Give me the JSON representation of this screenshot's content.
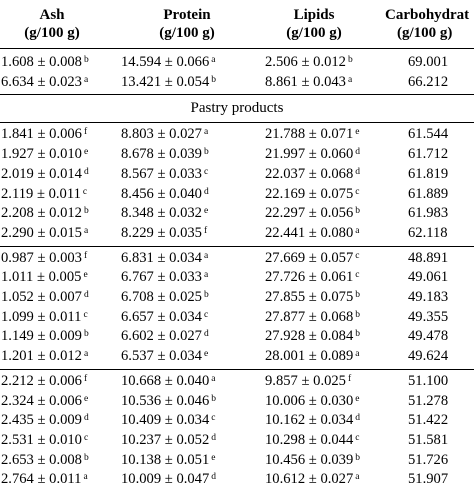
{
  "headers": {
    "ash": "Ash",
    "ash_unit": "(g/100 g)",
    "protein": "Protein",
    "protein_unit": "(g/100 g)",
    "lipids": "Lipids",
    "lipids_unit": "(g/100 g)",
    "carb": "Carbohydrat",
    "carb_unit": "(g/100 g)"
  },
  "group0": [
    {
      "ash": "1.608 ± 0.008",
      "ash_s": "b",
      "pro": "14.594 ± 0.066",
      "pro_s": "a",
      "lip": "2.506 ± 0.012",
      "lip_s": "b",
      "carb": "69.001"
    },
    {
      "ash": "6.634 ± 0.023",
      "ash_s": "a",
      "pro": "13.421 ± 0.054",
      "pro_s": "b",
      "lip": "8.861 ± 0.043",
      "lip_s": "a",
      "carb": "66.212"
    }
  ],
  "section_title": "Pastry products",
  "group1": [
    {
      "ash": "1.841 ± 0.006",
      "ash_s": "f",
      "pro": "8.803 ± 0.027",
      "pro_s": "a",
      "lip": "21.788 ± 0.071",
      "lip_s": "e",
      "carb": "61.544"
    },
    {
      "ash": "1.927 ± 0.010",
      "ash_s": "e",
      "pro": "8.678 ± 0.039",
      "pro_s": "b",
      "lip": "21.997 ± 0.060",
      "lip_s": "d",
      "carb": "61.712"
    },
    {
      "ash": "2.019 ± 0.014",
      "ash_s": "d",
      "pro": "8.567 ± 0.033",
      "pro_s": "c",
      "lip": "22.037 ± 0.068",
      "lip_s": "d",
      "carb": "61.819"
    },
    {
      "ash": "2.119 ± 0.011",
      "ash_s": "c",
      "pro": "8.456 ± 0.040",
      "pro_s": "d",
      "lip": "22.169 ± 0.075",
      "lip_s": "c",
      "carb": "61.889"
    },
    {
      "ash": "2.208 ± 0.012",
      "ash_s": "b",
      "pro": "8.348 ± 0.032",
      "pro_s": "e",
      "lip": "22.297 ± 0.056",
      "lip_s": "b",
      "carb": "61.983"
    },
    {
      "ash": "2.290 ± 0.015",
      "ash_s": "a",
      "pro": "8.229 ± 0.035",
      "pro_s": "f",
      "lip": "22.441 ± 0.080",
      "lip_s": "a",
      "carb": "62.118"
    }
  ],
  "group2": [
    {
      "ash": "0.987 ± 0.003",
      "ash_s": "f",
      "pro": "6.831 ± 0.034",
      "pro_s": "a",
      "lip": "27.669 ± 0.057",
      "lip_s": "c",
      "carb": "48.891"
    },
    {
      "ash": "1.011 ± 0.005",
      "ash_s": "e",
      "pro": "6.767 ± 0.033",
      "pro_s": "a",
      "lip": "27.726 ± 0.061",
      "lip_s": "c",
      "carb": "49.061"
    },
    {
      "ash": "1.052 ± 0.007",
      "ash_s": "d",
      "pro": "6.708 ± 0.025",
      "pro_s": "b",
      "lip": "27.855 ± 0.075",
      "lip_s": "b",
      "carb": "49.183"
    },
    {
      "ash": "1.099 ± 0.011",
      "ash_s": "c",
      "pro": "6.657 ± 0.034",
      "pro_s": "c",
      "lip": "27.877 ± 0.068",
      "lip_s": "b",
      "carb": "49.355"
    },
    {
      "ash": "1.149 ± 0.009",
      "ash_s": "b",
      "pro": "6.602 ± 0.027",
      "pro_s": "d",
      "lip": "27.928 ± 0.084",
      "lip_s": "b",
      "carb": "49.478"
    },
    {
      "ash": "1.201 ± 0.012",
      "ash_s": "a",
      "pro": "6.537 ± 0.034",
      "pro_s": "e",
      "lip": "28.001 ± 0.089",
      "lip_s": "a",
      "carb": "49.624"
    }
  ],
  "group3": [
    {
      "ash": "2.212 ± 0.006",
      "ash_s": "f",
      "pro": "10.668 ± 0.040",
      "pro_s": "a",
      "lip": "9.857 ± 0.025",
      "lip_s": "f",
      "carb": "51.100"
    },
    {
      "ash": "2.324 ± 0.006",
      "ash_s": "e",
      "pro": "10.536 ± 0.046",
      "pro_s": "b",
      "lip": "10.006 ± 0.030",
      "lip_s": "e",
      "carb": "51.278"
    },
    {
      "ash": "2.435 ± 0.009",
      "ash_s": "d",
      "pro": "10.409 ± 0.034",
      "pro_s": "c",
      "lip": "10.162 ± 0.034",
      "lip_s": "d",
      "carb": "51.422"
    },
    {
      "ash": "2.531 ± 0.010",
      "ash_s": "c",
      "pro": "10.237 ± 0.052",
      "pro_s": "d",
      "lip": "10.298 ± 0.044",
      "lip_s": "c",
      "carb": "51.581"
    },
    {
      "ash": "2.653 ± 0.008",
      "ash_s": "b",
      "pro": "10.138 ± 0.051",
      "pro_s": "e",
      "lip": "10.456 ± 0.039",
      "lip_s": "b",
      "carb": "51.726"
    },
    {
      "ash": "2.764 ± 0.011",
      "ash_s": "a",
      "pro": "10.009 ± 0.047",
      "pro_s": "d",
      "lip": "10.612 ± 0.027",
      "lip_s": "a",
      "carb": "51.907"
    }
  ]
}
